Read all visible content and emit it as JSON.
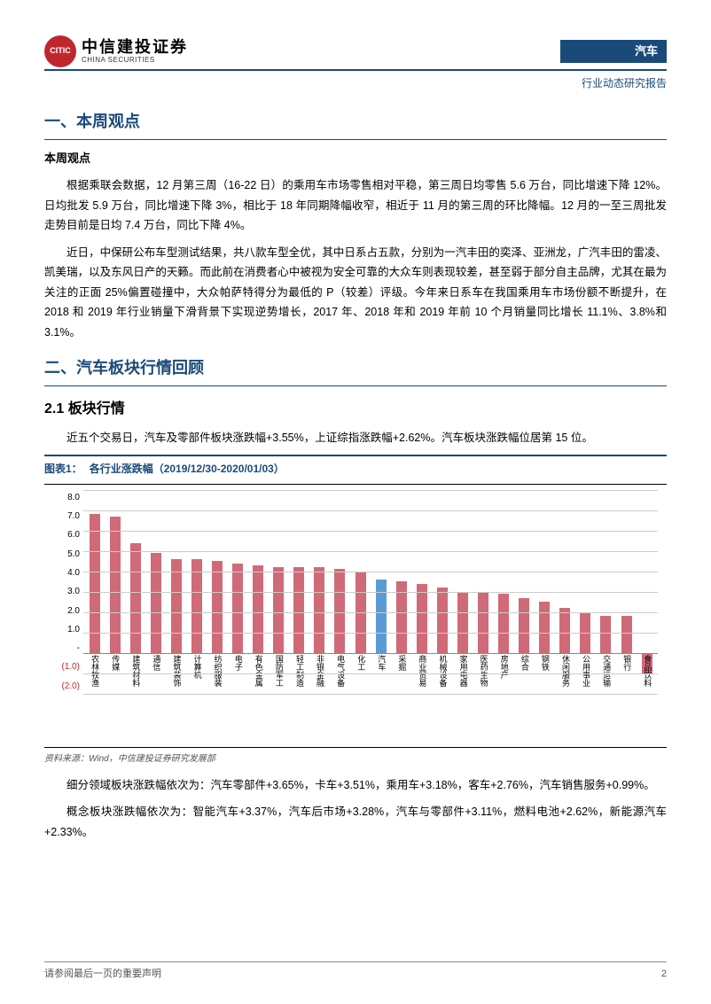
{
  "header": {
    "logo_cn": "中信建投证券",
    "logo_en": "CHINA SECURITIES",
    "tag": "汽车",
    "subtitle": "行业动态研究报告"
  },
  "section1": {
    "title": "一、本周观点",
    "subtitle": "本周观点",
    "para1": "根据乘联会数据，12 月第三周（16-22 日）的乘用车市场零售相对平稳，第三周日均零售 5.6 万台，同比增速下降 12%。日均批发 5.9 万台，同比增速下降 3%，相比于 18 年同期降幅收窄，相近于 11 月的第三周的环比降幅。12 月的一至三周批发走势目前是日均 7.4 万台，同比下降 4%。",
    "para2": "近日，中保研公布车型测试结果，共八款车型全优，其中日系占五款，分别为一汽丰田的奕泽、亚洲龙，广汽丰田的雷凌、凯美瑞，以及东风日产的天籁。而此前在消费者心中被视为安全可靠的大众车则表现较差，甚至弱于部分自主品牌，尤其在最为关注的正面 25%偏置碰撞中，大众帕萨特得分为最低的 P（较差）评级。今年来日系车在我国乘用车市场份额不断提升，在 2018 和 2019 年行业销量下滑背景下实现逆势增长，2017 年、2018 年和 2019 年前 10 个月销量同比增长 11.1%、3.8%和 3.1%。"
  },
  "section2": {
    "title": "二、汽车板块行情回顾",
    "sub": "2.1 板块行情",
    "para1": "近五个交易日，汽车及零部件板块涨跌幅+3.55%，上证综指涨跌幅+2.62%。汽车板块涨跌幅位居第 15 位。",
    "chart": {
      "caption_label": "图表1：",
      "caption_text": "各行业涨跌幅（2019/12/30-2020/01/03）",
      "type": "bar",
      "y_ticks": [
        "8.0",
        "7.0",
        "6.0",
        "5.0",
        "4.0",
        "3.0",
        "2.0",
        "1.0",
        "-",
        "(1.0)",
        "(2.0)"
      ],
      "ymin": -2.0,
      "ymax": 8.0,
      "grid_color": "#cccccc",
      "bar_color_default": "#d06a78",
      "bar_color_highlight": "#5b9bd5",
      "background_color": "#ffffff",
      "categories": [
        "农林牧渔",
        "传媒",
        "建筑材料",
        "通信",
        "建筑装饰",
        "计算机",
        "纺织服装",
        "电子",
        "有色金属",
        "国防军工",
        "轻工制造",
        "非银金融",
        "电气设备",
        "化工",
        "汽车",
        "采掘",
        "商业贸易",
        "机械设备",
        "家用电器",
        "医药生物",
        "房地产",
        "综合",
        "钢铁",
        "休闲服务",
        "公用事业",
        "交通运输",
        "银行",
        "食品饮料"
      ],
      "values": [
        6.8,
        6.7,
        5.4,
        4.9,
        4.6,
        4.6,
        4.5,
        4.4,
        4.3,
        4.2,
        4.2,
        4.2,
        4.1,
        4.0,
        3.6,
        3.5,
        3.4,
        3.2,
        3.0,
        3.0,
        2.9,
        2.7,
        2.5,
        2.2,
        2.0,
        1.8,
        1.8,
        -1.0
      ],
      "highlight_index": 14,
      "source": "资料来源：Wind，中信建投证券研究发展部"
    },
    "para2": "细分领域板块涨跌幅依次为：汽车零部件+3.65%，卡车+3.51%，乘用车+3.18%，客车+2.76%，汽车销售服务+0.99%。",
    "para3": "概念板块涨跌幅依次为：智能汽车+3.37%，汽车后市场+3.28%，汽车与零部件+3.11%，燃料电池+2.62%，新能源汽车+2.33%。"
  },
  "footer": {
    "disclaimer": "请参阅最后一页的重要声明",
    "page": "2"
  }
}
